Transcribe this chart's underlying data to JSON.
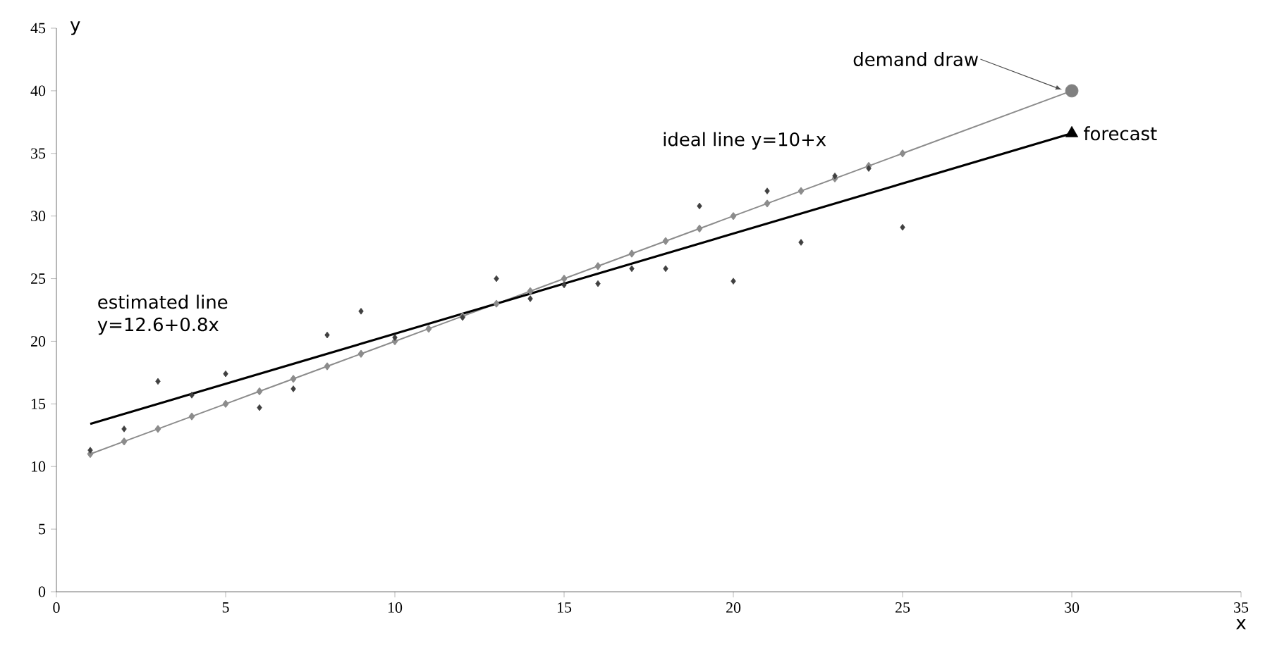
{
  "chart_data": {
    "type": "scatter",
    "xlabel": "x",
    "ylabel": "y",
    "xlim": [
      0,
      35
    ],
    "ylim": [
      0,
      45
    ],
    "xticks": [
      0,
      5,
      10,
      15,
      20,
      25,
      30,
      35
    ],
    "yticks": [
      0,
      5,
      10,
      15,
      20,
      25,
      30,
      35,
      40,
      45
    ],
    "grid": false,
    "legend": false,
    "series": [
      {
        "color": "#404040",
        "marker": "diamond",
        "x": [
          1,
          2,
          3,
          4,
          5,
          6,
          7,
          8,
          9,
          10,
          11,
          12,
          13,
          14,
          15,
          16,
          17,
          18,
          19,
          20,
          21,
          22,
          23,
          24,
          25
        ],
        "values": [
          11.3,
          13.0,
          16.8,
          15.7,
          17.4,
          14.7,
          16.2,
          20.5,
          22.4,
          20.3,
          null,
          21.9,
          25.0,
          23.4,
          24.5,
          24.6,
          25.8,
          25.8,
          30.8,
          24.8,
          32.0,
          27.9,
          33.2,
          33.8,
          29.1
        ]
      },
      {
        "type": "line",
        "name": "ideal line y=10+x",
        "color": "#8c8c8c",
        "marker": "diamond",
        "line_style": "solid",
        "x": [
          1,
          2,
          3,
          4,
          5,
          6,
          7,
          8,
          9,
          10,
          11,
          12,
          13,
          14,
          15,
          16,
          17,
          18,
          19,
          20,
          21,
          22,
          23,
          24,
          25,
          30
        ],
        "values": [
          11,
          12,
          13,
          14,
          15,
          16,
          17,
          18,
          19,
          20,
          21,
          22,
          23,
          24,
          25,
          26,
          27,
          28,
          29,
          30,
          31,
          32,
          33,
          34,
          35,
          40
        ]
      },
      {
        "type": "line",
        "name": "estimated line y=12.6+0.8x",
        "color": "#000000",
        "marker": "none",
        "line_style": "solid",
        "x": [
          1,
          30
        ],
        "values": [
          13.4,
          36.6
        ]
      },
      {
        "name": "demand draw",
        "color": "#808080",
        "marker": "circle",
        "x": [
          30
        ],
        "values": [
          40
        ]
      },
      {
        "name": "forecast",
        "color": "#000000",
        "marker": "triangle",
        "x": [
          30
        ],
        "values": [
          36.6
        ]
      }
    ]
  }
}
